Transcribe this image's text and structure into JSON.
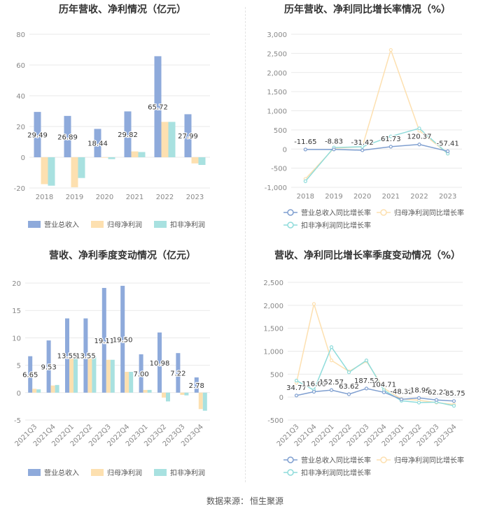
{
  "footer": {
    "label": "数据来源：",
    "source": "恒生聚源"
  },
  "colors": {
    "revenue": "#8eaadb",
    "net_profit": "#fde0b0",
    "deducted_profit": "#a8e1e0",
    "grid": "#e6e6e6",
    "axis_text": "#888888"
  },
  "chart_data": [
    {
      "id": "annual_values",
      "type": "bar",
      "title": "历年营收、净利情况（亿元）",
      "categories": [
        "2018",
        "2019",
        "2020",
        "2021",
        "2022",
        "2023"
      ],
      "ylim": [
        -20,
        80
      ],
      "yticks": [
        -20,
        0,
        20,
        40,
        60,
        80
      ],
      "series": [
        {
          "name": "营业总收入",
          "color": "#8eaadb",
          "values": [
            29.49,
            26.89,
            18.44,
            29.82,
            65.72,
            27.99
          ],
          "labels": [
            "29.49",
            "26.89",
            "18.44",
            "29.82",
            "65.72",
            "27.99"
          ]
        },
        {
          "name": "归母净利润",
          "color": "#fde0b0",
          "values": [
            -17.5,
            -19.5,
            -0.3,
            3.8,
            23.0,
            -4.0
          ]
        },
        {
          "name": "扣非净利润",
          "color": "#a8e1e0",
          "values": [
            -18.5,
            -13.5,
            -1.2,
            3.4,
            23.0,
            -5.0
          ]
        }
      ],
      "legend_position": "bottom"
    },
    {
      "id": "annual_growth",
      "type": "line",
      "title": "历年营收、净利同比增长率情况（%）",
      "categories": [
        "2018",
        "2019",
        "2020",
        "2021",
        "2022",
        "2023"
      ],
      "ylim": [
        -1000,
        3000
      ],
      "yticks": [
        -1000,
        -500,
        0,
        500,
        1000,
        1500,
        2000,
        2500,
        3000
      ],
      "ytick_labels": [
        "-1,000",
        "-500",
        "0",
        "500",
        "1,000",
        "1,500",
        "2,000",
        "2,500",
        "3,000"
      ],
      "series": [
        {
          "name": "营业总收入同比增长率",
          "color": "#7f9fd0",
          "values": [
            -11.65,
            -8.83,
            -31.42,
            61.73,
            120.37,
            -57.41
          ],
          "labels": [
            "-11.65",
            "-8.83",
            "-31.42",
            "61.73",
            "120.37",
            "-57.41"
          ]
        },
        {
          "name": "归母净利润同比增长率",
          "color": "#fde0b0",
          "values": [
            -780,
            20,
            60,
            2590,
            480,
            -120
          ]
        },
        {
          "name": "扣非净利润同比增长率",
          "color": "#8fdcdb",
          "values": [
            -840,
            40,
            60,
            330,
            540,
            -120
          ]
        }
      ],
      "legend_position": "bottom"
    },
    {
      "id": "quarterly_values",
      "type": "bar",
      "title": "营收、净利季度变动情况（亿元）",
      "categories": [
        "2021Q3",
        "2021Q4",
        "2022Q1",
        "2022Q2",
        "2022Q3",
        "2022Q4",
        "2023Q1",
        "2023Q2",
        "2023Q3",
        "2023Q4"
      ],
      "ylim": [
        -5,
        20
      ],
      "yticks": [
        -5,
        0,
        5,
        10,
        15,
        20
      ],
      "series": [
        {
          "name": "营业总收入",
          "color": "#8eaadb",
          "values": [
            6.65,
            9.53,
            13.55,
            13.55,
            19.11,
            19.5,
            7.0,
            10.98,
            7.22,
            2.78
          ],
          "labels": [
            "6.65",
            "9.53",
            "13.55",
            "13.55",
            "19.11",
            "19.50",
            "7.00",
            "10.98",
            "7.22",
            "2.78"
          ]
        },
        {
          "name": "归母净利润",
          "color": "#fde0b0",
          "values": [
            0.7,
            1.3,
            6.4,
            6.5,
            6.0,
            3.8,
            0.5,
            -0.9,
            -0.4,
            -3.0
          ]
        },
        {
          "name": "扣非净利润",
          "color": "#a8e1e0",
          "values": [
            0.6,
            1.4,
            6.4,
            6.6,
            6.0,
            3.8,
            0.5,
            -1.6,
            -0.5,
            -3.3
          ]
        }
      ],
      "legend_position": "bottom"
    },
    {
      "id": "quarterly_growth",
      "type": "line",
      "title": "营收、净利同比增长率季度变动情况（%）",
      "categories": [
        "2021Q3",
        "2021Q4",
        "2022Q1",
        "2022Q2",
        "2022Q3",
        "2022Q4",
        "2023Q1",
        "2023Q2",
        "2023Q3",
        "2023Q4"
      ],
      "ylim": [
        -500,
        2500
      ],
      "yticks": [
        -500,
        0,
        500,
        1000,
        1500,
        2000,
        2500
      ],
      "ytick_labels": [
        "-500",
        "0",
        "500",
        "1,000",
        "1,500",
        "2,000",
        "2,500"
      ],
      "series": [
        {
          "name": "营业总收入同比增长率",
          "color": "#7f9fd0",
          "values": [
            34.77,
            116.08,
            152.57,
            63.62,
            187.52,
            104.71,
            -48.32,
            -18.96,
            -62.22,
            -85.75
          ],
          "labels": [
            "34.77",
            "116.08",
            "152.57",
            "63.62",
            "187.52",
            "104.71",
            "-48.32",
            "-18.96",
            "-62.22",
            "-85.75"
          ]
        },
        {
          "name": "归母净利润同比增长率",
          "color": "#fde0b0",
          "values": [
            310,
            2030,
            800,
            560,
            780,
            190,
            -40,
            -70,
            -120,
            -160
          ]
        },
        {
          "name": "扣非净利润同比增长率",
          "color": "#8fdcdb",
          "values": [
            360,
            150,
            1090,
            540,
            800,
            150,
            -80,
            -120,
            -110,
            -190
          ]
        }
      ],
      "legend_position": "bottom"
    }
  ]
}
